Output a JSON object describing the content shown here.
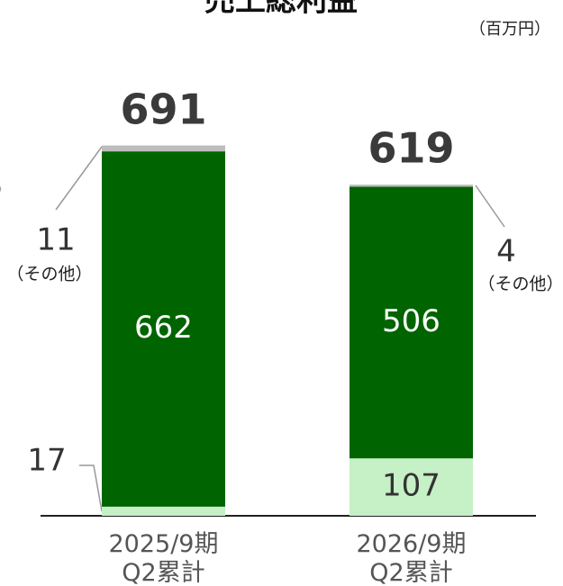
{
  "chart_data": {
    "type": "stacked-bar",
    "title": "売上総利益",
    "unit": "（百万円）",
    "categories": [
      "2025/9期\nQ2累計",
      "2026/9期\nQ2累計"
    ],
    "series": [
      {
        "color": "#c6f0c6",
        "values": [
          17,
          107
        ]
      },
      {
        "color": "#006400",
        "values": [
          662,
          506
        ]
      },
      {
        "name": "（その他）",
        "color": "#bdbdbd",
        "values": [
          11,
          4
        ]
      }
    ],
    "totals": [
      691,
      619
    ],
    "ylim": [
      0,
      691
    ]
  }
}
